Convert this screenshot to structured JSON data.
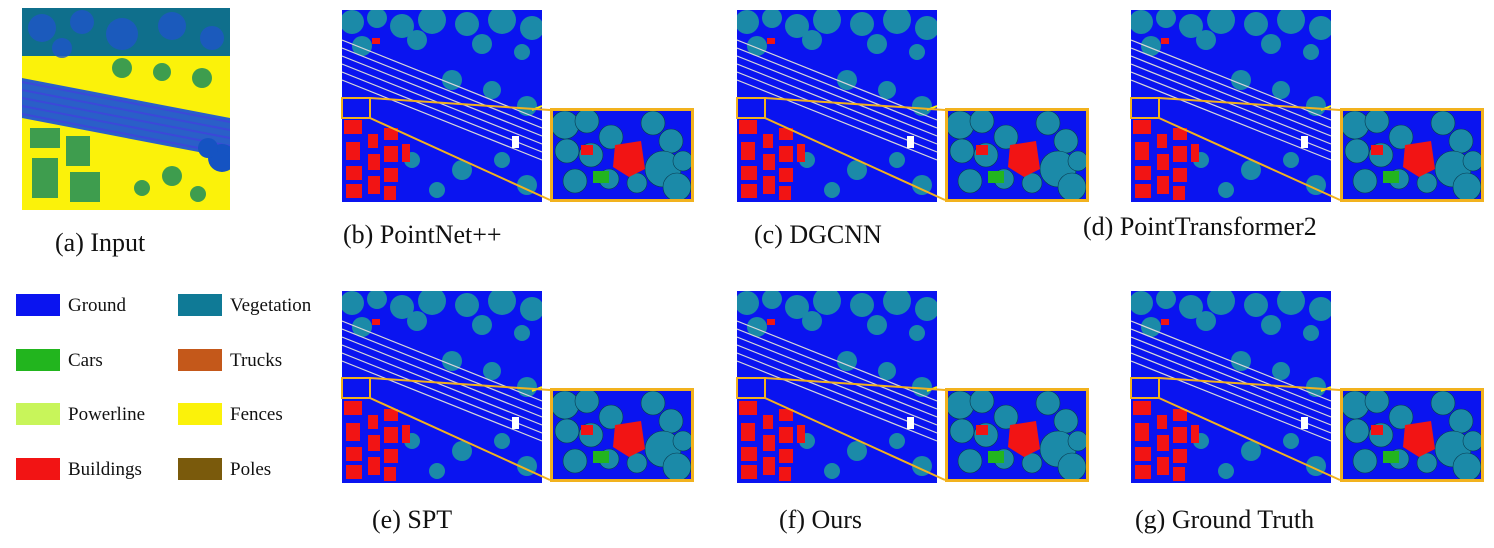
{
  "panels": {
    "a": {
      "caption": "(a) Input"
    },
    "b": {
      "caption": "(b) PointNet++"
    },
    "c": {
      "caption": "(c) DGCNN"
    },
    "d": {
      "caption": "(d) PointTransformer2"
    },
    "e": {
      "caption": "(e) SPT"
    },
    "f": {
      "caption": "(f) Ours"
    },
    "g": {
      "caption": "(g) Ground Truth"
    }
  },
  "legend": {
    "items": [
      {
        "label": "Ground",
        "color": "#0a14f0"
      },
      {
        "label": "Vegetation",
        "color": "#0f7a96"
      },
      {
        "label": "Cars",
        "color": "#22b51e"
      },
      {
        "label": "Trucks",
        "color": "#c4581a"
      },
      {
        "label": "Powerline",
        "color": "#c8f55a"
      },
      {
        "label": "Fences",
        "color": "#fbf20a"
      },
      {
        "label": "Buildings",
        "color": "#f21414"
      },
      {
        "label": "Poles",
        "color": "#7a5a0c"
      }
    ]
  },
  "colors": {
    "ground": "#0a14f0",
    "vegetation": "#1b8aa8",
    "building": "#f21414",
    "fence": "#fbf20a",
    "zoom_frame": "#f2b21e",
    "powerline": "#d8d8d8"
  }
}
